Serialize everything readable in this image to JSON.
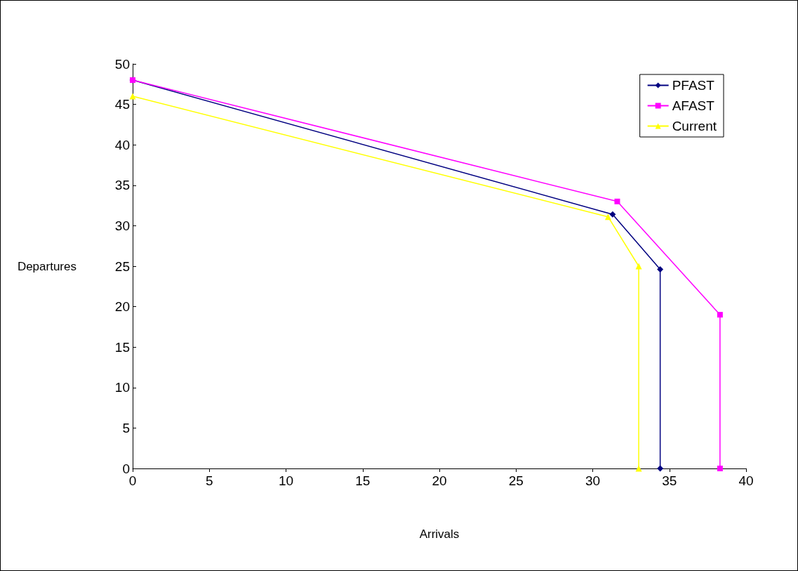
{
  "chart_data": {
    "type": "line",
    "xlabel": "Arrivals",
    "ylabel": "Departures",
    "xlim": [
      0,
      40
    ],
    "xticks": [
      0,
      5,
      10,
      15,
      20,
      25,
      30,
      35,
      40
    ],
    "ylim": [
      0,
      50
    ],
    "yticks": [
      0,
      5,
      10,
      15,
      20,
      25,
      30,
      35,
      40,
      45,
      50
    ],
    "grid": false,
    "legend": "top right",
    "line_style": "solid",
    "series": [
      {
        "name": "PFAST",
        "color": "#000080",
        "marker": "diamond",
        "x": [
          0,
          31.3,
          34.4,
          34.4
        ],
        "values": [
          48,
          31.4,
          24.6,
          0
        ]
      },
      {
        "name": "AFAST",
        "color": "#ff00ff",
        "marker": "square",
        "x": [
          0,
          31.6,
          38.3,
          38.3
        ],
        "values": [
          48,
          33,
          19,
          0
        ]
      },
      {
        "name": "Current",
        "color": "#ffff00",
        "marker": "triangle",
        "x": [
          0,
          31,
          33,
          33
        ],
        "values": [
          46,
          31.1,
          25,
          0
        ]
      }
    ]
  }
}
